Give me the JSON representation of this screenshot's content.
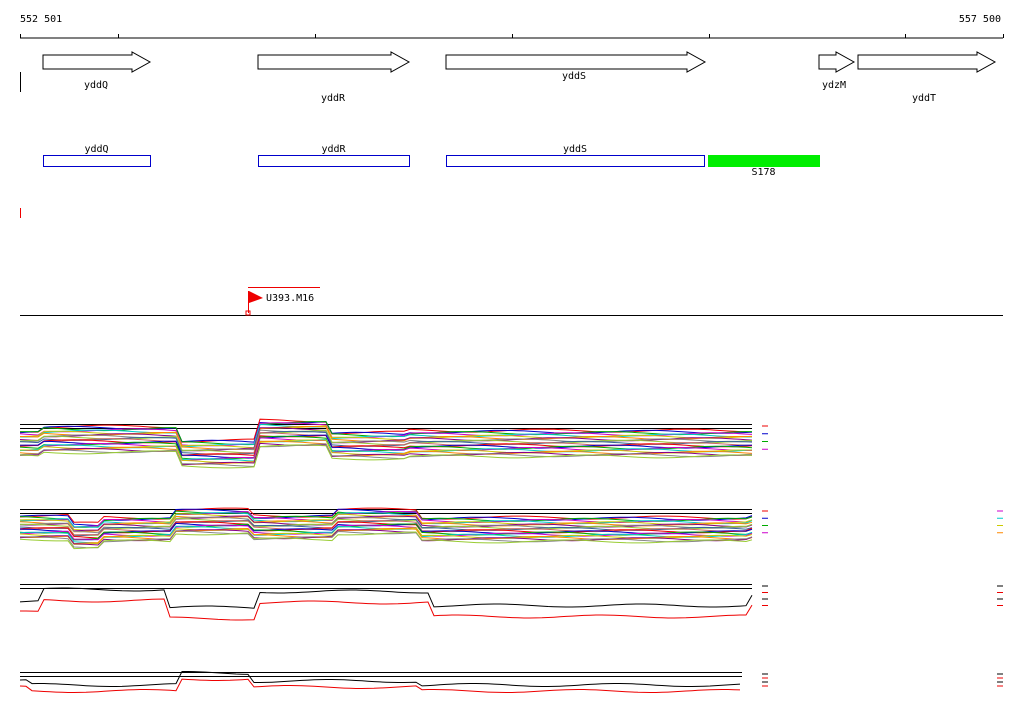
{
  "ruler": {
    "start": "552 501",
    "end": "557 500"
  },
  "genes": [
    {
      "label": "yddQ"
    },
    {
      "label": "yddR"
    },
    {
      "label": "yddS"
    },
    {
      "label": "ydzM"
    },
    {
      "label": "yddT"
    }
  ],
  "features": [
    {
      "label": "yddQ"
    },
    {
      "label": "yddR"
    },
    {
      "label": "yddS"
    },
    {
      "label": "S178"
    }
  ],
  "marker": {
    "label": "U393.M16"
  }
}
